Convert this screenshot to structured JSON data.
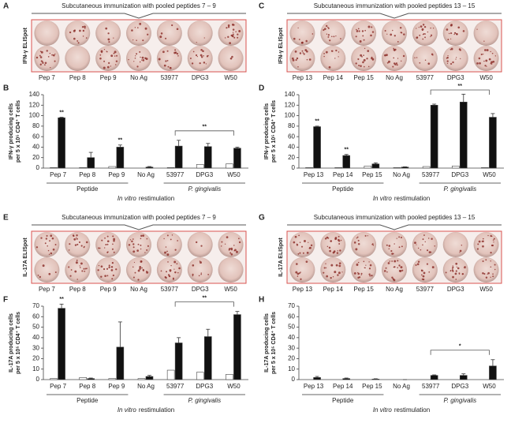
{
  "panels": [
    {
      "panel": "A",
      "title": "Subcutaneous immunization with pooled peptides 7 – 9",
      "elispot_label": "IFN-γ ELISpot",
      "well_labels": [
        "Pep 7",
        "Pep 8",
        "Pep 9",
        "No Ag",
        "53977",
        "DPG3",
        "W50"
      ]
    },
    {
      "panel": "C",
      "title": "Subcutaneous immunization with pooled peptides 13 – 15",
      "elispot_label": "IFN-γ ELISpot",
      "well_labels": [
        "Pep 13",
        "Pep 14",
        "Pep 15",
        "No Ag",
        "53977",
        "DPG3",
        "W50"
      ]
    },
    {
      "panel": "E",
      "title": "Subcutaneous immunization with pooled peptides 7 – 9",
      "elispot_label": "IL-17A ELISpot",
      "well_labels": [
        "Pep 7",
        "Pep 8",
        "Pep 9",
        "No Ag",
        "53977",
        "DPG3",
        "W50"
      ]
    },
    {
      "panel": "G",
      "title": "Subcutaneous immunization with pooled peptides 13 – 15",
      "elispot_label": "IL-17A ELISpot",
      "well_labels": [
        "Pep 13",
        "Pep 14",
        "Pep 15",
        "No Ag",
        "53977",
        "DPG3",
        "W50"
      ]
    }
  ],
  "chart_data": [
    {
      "type": "bar",
      "panel": "B",
      "ylabel": [
        "IFN-γ producing cells",
        "per 5 x 10⁵ CD4⁺ T cells"
      ],
      "xlabel": {
        "italic": "In vitro",
        "rest": "restimulation"
      },
      "categories": [
        "Pep 7",
        "Pep 8",
        "Pep 9",
        "No Ag",
        "53977",
        "DPG3",
        "W50"
      ],
      "groups": [
        {
          "label": "Peptide",
          "first": 0,
          "last": 2
        },
        {
          "label": "P. gingivalis",
          "first": 4,
          "last": 6,
          "significance": "**"
        }
      ],
      "series": [
        {
          "color": "#ffffff",
          "values": [
            1,
            1,
            3,
            0,
            1,
            7,
            8
          ]
        },
        {
          "color": "#111111",
          "values": [
            96,
            20,
            40,
            2,
            42,
            41,
            38
          ],
          "errors": [
            1,
            10,
            4,
            1,
            11,
            6,
            2
          ],
          "significance": [
            "**",
            null,
            "**",
            null,
            null,
            null,
            null
          ]
        }
      ],
      "ylim": [
        0,
        140
      ],
      "yticks": [
        0,
        20,
        40,
        60,
        80,
        100,
        120,
        140
      ]
    },
    {
      "type": "bar",
      "panel": "D",
      "ylabel": [
        "IFN-γ producing cells",
        "per 5 x 10⁵ CD4⁺ T cells"
      ],
      "xlabel": {
        "italic": "In vitro",
        "rest": "restimulation"
      },
      "categories": [
        "Pep 13",
        "Pep 14",
        "Pep 15",
        "No Ag",
        "53977",
        "DPG3",
        "W50"
      ],
      "groups": [
        {
          "label": "Peptide",
          "first": 0,
          "last": 2
        },
        {
          "label": "P. gingivalis",
          "first": 4,
          "last": 6,
          "significance": "**"
        }
      ],
      "series": [
        {
          "color": "#ffffff",
          "values": [
            1,
            1,
            4,
            1,
            3,
            4,
            1
          ]
        },
        {
          "color": "#111111",
          "values": [
            79,
            24,
            8,
            2,
            120,
            126,
            97
          ],
          "errors": [
            1,
            2,
            2,
            0.5,
            2,
            15,
            7
          ],
          "significance": [
            "**",
            "**",
            null,
            null,
            null,
            null,
            null
          ]
        }
      ],
      "ylim": [
        0,
        140
      ],
      "yticks": [
        0,
        20,
        40,
        60,
        80,
        100,
        120,
        140
      ]
    },
    {
      "type": "bar",
      "panel": "F",
      "ylabel": [
        "IL-17A producing cells",
        "per 5 x 10⁵ CD4⁺ T cells"
      ],
      "xlabel": {
        "italic": "In vitro",
        "rest": "restimulation"
      },
      "categories": [
        "Pep 7",
        "Pep 8",
        "Pep 9",
        "No Ag",
        "53977",
        "DPG3",
        "W50"
      ],
      "groups": [
        {
          "label": "Peptide",
          "first": 0,
          "last": 2
        },
        {
          "label": "P. gingivalis",
          "first": 4,
          "last": 6,
          "significance": "**"
        }
      ],
      "series": [
        {
          "color": "#ffffff",
          "values": [
            1,
            2,
            1,
            1,
            9,
            7,
            5
          ]
        },
        {
          "color": "#111111",
          "values": [
            68,
            1,
            31,
            3,
            35,
            41,
            62
          ],
          "errors": [
            4,
            0.5,
            24,
            1,
            5,
            7,
            3
          ],
          "significance": [
            "**",
            null,
            null,
            null,
            null,
            null,
            null
          ]
        }
      ],
      "ylim": [
        0,
        70
      ],
      "yticks": [
        0,
        10,
        20,
        30,
        40,
        50,
        60,
        70
      ]
    },
    {
      "type": "bar",
      "panel": "H",
      "ylabel": [
        "IL-17A producing cells",
        "per 5 x 10⁵ CD4⁺ T cells"
      ],
      "xlabel": {
        "italic": "In vitro",
        "rest": "restimulation"
      },
      "categories": [
        "Pep 13",
        "Pep 14",
        "Pep 15",
        "No Ag",
        "53977",
        "DPG3",
        "W50"
      ],
      "groups": [
        {
          "label": "Peptide",
          "first": 0,
          "last": 2
        },
        {
          "label": "P. gingivalis",
          "first": 4,
          "last": 6,
          "significance": "*"
        }
      ],
      "series": [
        {
          "color": "#ffffff",
          "values": [
            0,
            0,
            0,
            0,
            0,
            0,
            0
          ]
        },
        {
          "color": "#111111",
          "values": [
            2,
            1,
            0.5,
            0,
            4,
            4,
            13
          ],
          "errors": [
            1,
            0.5,
            0.3,
            0,
            0.5,
            1.5,
            6
          ]
        }
      ],
      "ylim": [
        0,
        70
      ],
      "yticks": [
        0,
        10,
        20,
        30,
        40,
        50,
        60,
        70
      ]
    }
  ]
}
